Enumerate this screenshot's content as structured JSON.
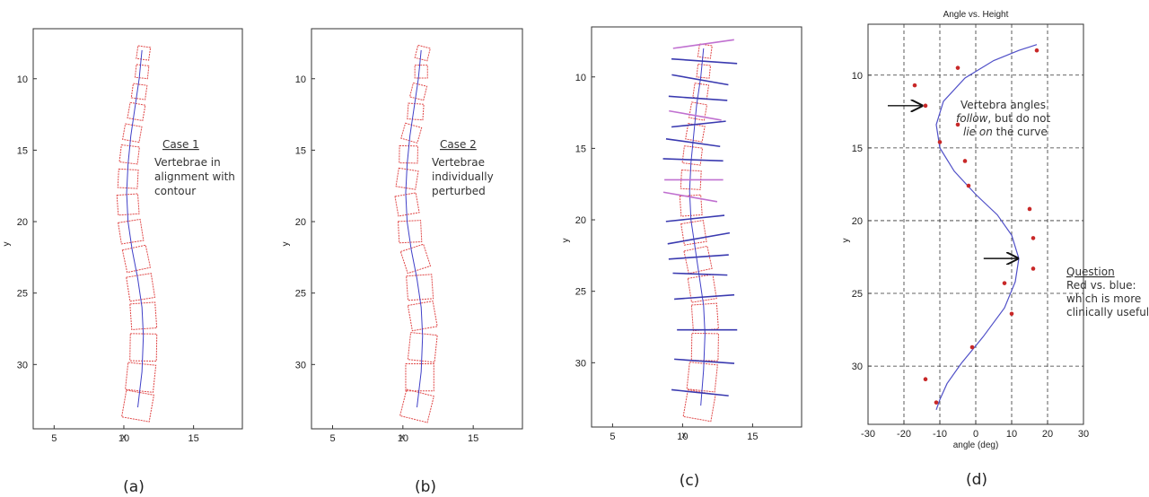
{
  "chart_data": [
    {
      "type": "scatter",
      "panel_label": "(a)",
      "xlabel": "x",
      "ylabel": "y",
      "xlim": [
        3.5,
        18.5
      ],
      "ylim": [
        34.5,
        6.5
      ],
      "xticks": [
        "5",
        "10",
        "15"
      ],
      "yticks": [
        "10",
        "15",
        "20",
        "25",
        "30"
      ],
      "annotation": {
        "title": "Case 1",
        "lines": [
          "Vertebrae in",
          "alignment with",
          "contour"
        ]
      },
      "contour": {
        "x": [
          11.3,
          11.1,
          10.8,
          10.5,
          10.3,
          10.2,
          10.3,
          10.6,
          11.0,
          11.3,
          11.4,
          11.3,
          11.0
        ],
        "y": [
          8.0,
          10.0,
          12.0,
          14.0,
          16.0,
          18.0,
          20.0,
          22.0,
          24.0,
          26.0,
          28.0,
          30.5,
          33.0
        ]
      },
      "vertebrae": [
        {
          "x": 11.4,
          "y": 8.2,
          "w": 0.9,
          "h": 0.9,
          "angle": 8
        },
        {
          "x": 11.3,
          "y": 9.5,
          "w": 0.9,
          "h": 0.9,
          "angle": 6
        },
        {
          "x": 11.1,
          "y": 10.9,
          "w": 1.0,
          "h": 1.0,
          "angle": 8
        },
        {
          "x": 10.9,
          "y": 12.3,
          "w": 1.1,
          "h": 1.1,
          "angle": 10
        },
        {
          "x": 10.6,
          "y": 13.8,
          "w": 1.2,
          "h": 1.1,
          "angle": 10
        },
        {
          "x": 10.4,
          "y": 15.3,
          "w": 1.3,
          "h": 1.2,
          "angle": 7
        },
        {
          "x": 10.3,
          "y": 17.0,
          "w": 1.4,
          "h": 1.3,
          "angle": 3
        },
        {
          "x": 10.3,
          "y": 18.8,
          "w": 1.5,
          "h": 1.4,
          "angle": -4
        },
        {
          "x": 10.5,
          "y": 20.7,
          "w": 1.6,
          "h": 1.5,
          "angle": -9
        },
        {
          "x": 10.9,
          "y": 22.6,
          "w": 1.7,
          "h": 1.6,
          "angle": -12
        },
        {
          "x": 11.2,
          "y": 24.6,
          "w": 1.8,
          "h": 1.7,
          "angle": -9
        },
        {
          "x": 11.4,
          "y": 26.6,
          "w": 1.8,
          "h": 1.8,
          "angle": -4
        },
        {
          "x": 11.4,
          "y": 28.8,
          "w": 1.9,
          "h": 1.9,
          "angle": 1
        },
        {
          "x": 11.2,
          "y": 30.9,
          "w": 2.0,
          "h": 1.9,
          "angle": 6
        },
        {
          "x": 11.0,
          "y": 32.9,
          "w": 2.0,
          "h": 1.9,
          "angle": 10
        }
      ]
    },
    {
      "type": "scatter",
      "panel_label": "(b)",
      "xlabel": "x",
      "ylabel": "y",
      "xlim": [
        3.5,
        18.5
      ],
      "ylim": [
        34.5,
        6.5
      ],
      "xticks": [
        "5",
        "10",
        "15"
      ],
      "yticks": [
        "10",
        "15",
        "20",
        "25",
        "30"
      ],
      "annotation": {
        "title": "Case 2",
        "lines": [
          "Vertebrae",
          "individually",
          "perturbed"
        ]
      },
      "contour": {
        "x": [
          11.3,
          11.1,
          10.8,
          10.5,
          10.3,
          10.2,
          10.3,
          10.6,
          11.0,
          11.3,
          11.4,
          11.3,
          11.0
        ],
        "y": [
          8.0,
          10.0,
          12.0,
          14.0,
          16.0,
          18.0,
          20.0,
          22.0,
          24.0,
          26.0,
          28.0,
          30.5,
          33.0
        ]
      },
      "vertebrae": [
        {
          "x": 11.4,
          "y": 8.2,
          "w": 0.9,
          "h": 0.9,
          "angle": 14
        },
        {
          "x": 11.3,
          "y": 9.5,
          "w": 0.9,
          "h": 0.9,
          "angle": 0
        },
        {
          "x": 11.1,
          "y": 10.9,
          "w": 1.0,
          "h": 1.0,
          "angle": 14
        },
        {
          "x": 10.9,
          "y": 12.3,
          "w": 1.1,
          "h": 1.1,
          "angle": 4
        },
        {
          "x": 10.6,
          "y": 13.8,
          "w": 1.2,
          "h": 1.1,
          "angle": 16
        },
        {
          "x": 10.4,
          "y": 15.3,
          "w": 1.3,
          "h": 1.2,
          "angle": 1
        },
        {
          "x": 10.3,
          "y": 17.0,
          "w": 1.4,
          "h": 1.3,
          "angle": 9
        },
        {
          "x": 10.3,
          "y": 18.8,
          "w": 1.5,
          "h": 1.4,
          "angle": -10
        },
        {
          "x": 10.5,
          "y": 20.7,
          "w": 1.6,
          "h": 1.5,
          "angle": -3
        },
        {
          "x": 10.9,
          "y": 22.6,
          "w": 1.7,
          "h": 1.6,
          "angle": -18
        },
        {
          "x": 11.2,
          "y": 24.6,
          "w": 1.8,
          "h": 1.7,
          "angle": -4
        },
        {
          "x": 11.4,
          "y": 26.6,
          "w": 1.8,
          "h": 1.8,
          "angle": -10
        },
        {
          "x": 11.4,
          "y": 28.8,
          "w": 1.9,
          "h": 1.9,
          "angle": 6
        },
        {
          "x": 11.2,
          "y": 30.9,
          "w": 2.0,
          "h": 1.9,
          "angle": 0
        },
        {
          "x": 11.0,
          "y": 32.9,
          "w": 2.0,
          "h": 1.9,
          "angle": 14
        }
      ]
    },
    {
      "type": "scatter",
      "panel_label": "(c)",
      "xlabel": "x",
      "ylabel": "y",
      "xlim": [
        3.5,
        18.5
      ],
      "ylim": [
        34.5,
        6.5
      ],
      "xticks": [
        "5",
        "10",
        "15"
      ],
      "yticks": [
        "10",
        "15",
        "20",
        "25",
        "30"
      ],
      "contour": {
        "x": [
          11.5,
          11.3,
          11.0,
          10.8,
          10.6,
          10.5,
          10.6,
          10.9,
          11.2,
          11.5,
          11.6,
          11.5,
          11.3
        ],
        "y": [
          8.0,
          10.0,
          12.0,
          14.0,
          16.0,
          18.0,
          20.0,
          22.0,
          24.0,
          26.0,
          28.0,
          30.5,
          33.0
        ]
      },
      "vertebrae": [
        {
          "x": 11.6,
          "y": 8.2,
          "w": 0.9,
          "h": 0.9,
          "angle": 8
        },
        {
          "x": 11.5,
          "y": 9.6,
          "w": 0.9,
          "h": 0.9,
          "angle": 6
        },
        {
          "x": 11.3,
          "y": 11.0,
          "w": 1.0,
          "h": 1.0,
          "angle": 8
        },
        {
          "x": 11.1,
          "y": 12.4,
          "w": 1.1,
          "h": 1.1,
          "angle": 10
        },
        {
          "x": 10.9,
          "y": 13.9,
          "w": 1.2,
          "h": 1.1,
          "angle": 10
        },
        {
          "x": 10.7,
          "y": 15.5,
          "w": 1.3,
          "h": 1.2,
          "angle": 7
        },
        {
          "x": 10.6,
          "y": 17.2,
          "w": 1.4,
          "h": 1.3,
          "angle": 3
        },
        {
          "x": 10.6,
          "y": 19.0,
          "w": 1.5,
          "h": 1.4,
          "angle": -4
        },
        {
          "x": 10.8,
          "y": 20.9,
          "w": 1.6,
          "h": 1.5,
          "angle": -9
        },
        {
          "x": 11.1,
          "y": 22.8,
          "w": 1.7,
          "h": 1.6,
          "angle": -12
        },
        {
          "x": 11.4,
          "y": 24.8,
          "w": 1.8,
          "h": 1.7,
          "angle": -9
        },
        {
          "x": 11.6,
          "y": 26.8,
          "w": 1.8,
          "h": 1.8,
          "angle": -4
        },
        {
          "x": 11.6,
          "y": 28.9,
          "w": 1.9,
          "h": 1.9,
          "angle": 1
        },
        {
          "x": 11.4,
          "y": 31.0,
          "w": 2.0,
          "h": 1.9,
          "angle": 6
        },
        {
          "x": 11.2,
          "y": 33.0,
          "w": 2.0,
          "h": 1.9,
          "angle": 10
        }
      ],
      "angle_lines": [
        {
          "y": 7.7,
          "x1": 9.3,
          "x2": 13.7,
          "angle": -8,
          "color": "#c070d0"
        },
        {
          "y": 8.9,
          "x1": 9.2,
          "x2": 13.9,
          "angle": 4,
          "color": "#3a3ab0"
        },
        {
          "y": 10.2,
          "x1": 9.2,
          "x2": 13.3,
          "angle": 10,
          "color": "#3a3ab0"
        },
        {
          "y": 11.5,
          "x1": 9.0,
          "x2": 13.2,
          "angle": 4,
          "color": "#3a3ab0"
        },
        {
          "y": 12.7,
          "x1": 9.0,
          "x2": 12.8,
          "angle": 10,
          "color": "#c070d0"
        },
        {
          "y": 13.3,
          "x1": 9.2,
          "x2": 13.1,
          "angle": -6,
          "color": "#3a3ab0"
        },
        {
          "y": 14.6,
          "x1": 8.8,
          "x2": 12.7,
          "angle": 8,
          "color": "#3a3ab0"
        },
        {
          "y": 15.8,
          "x1": 8.6,
          "x2": 12.9,
          "angle": 2,
          "color": "#3a3ab0"
        },
        {
          "y": 17.2,
          "x1": 8.7,
          "x2": 12.9,
          "angle": 0,
          "color": "#c070d0"
        },
        {
          "y": 18.4,
          "x1": 8.6,
          "x2": 12.5,
          "angle": 10,
          "color": "#c070d0"
        },
        {
          "y": 19.9,
          "x1": 8.8,
          "x2": 13.0,
          "angle": -6,
          "color": "#3a3ab0"
        },
        {
          "y": 21.3,
          "x1": 8.9,
          "x2": 13.4,
          "angle": -10,
          "color": "#3a3ab0"
        },
        {
          "y": 22.6,
          "x1": 9.0,
          "x2": 13.3,
          "angle": -4,
          "color": "#3a3ab0"
        },
        {
          "y": 23.8,
          "x1": 9.3,
          "x2": 13.2,
          "angle": 2,
          "color": "#3a3ab0"
        },
        {
          "y": 25.4,
          "x1": 9.4,
          "x2": 13.7,
          "angle": -4,
          "color": "#3a3ab0"
        },
        {
          "y": 27.7,
          "x1": 9.6,
          "x2": 13.9,
          "angle": 0,
          "color": "#3a3ab0"
        },
        {
          "y": 29.9,
          "x1": 9.4,
          "x2": 13.7,
          "angle": 4,
          "color": "#3a3ab0"
        },
        {
          "y": 32.1,
          "x1": 9.2,
          "x2": 13.3,
          "angle": 6,
          "color": "#3a3ab0"
        }
      ]
    },
    {
      "type": "scatter",
      "panel_label": "(d)",
      "title": "Angle vs. Height",
      "xlabel": "angle (deg)",
      "ylabel": "y",
      "xlim": [
        -30,
        30
      ],
      "ylim": [
        34,
        6.5
      ],
      "xticks": [
        "-30",
        "-20",
        "-10",
        "0",
        "10",
        "20",
        "30"
      ],
      "yticks": [
        "10",
        "15",
        "20",
        "25",
        "30"
      ],
      "grid": true,
      "curve": {
        "x": [
          17,
          12,
          5,
          -3,
          -9,
          -11,
          -10,
          -6,
          0,
          6,
          10,
          12,
          11,
          8,
          2,
          -4,
          -8,
          -10,
          -11
        ],
        "y": [
          7.9,
          8.3,
          9.0,
          10.2,
          11.8,
          13.4,
          15.0,
          16.6,
          18.2,
          19.6,
          21.0,
          22.6,
          24.2,
          26.0,
          28.0,
          29.8,
          31.2,
          32.3,
          33.0
        ]
      },
      "points": [
        {
          "angle": 17,
          "y": 8.3
        },
        {
          "angle": -5,
          "y": 9.5
        },
        {
          "angle": -17,
          "y": 10.7
        },
        {
          "angle": -14,
          "y": 12.1
        },
        {
          "angle": -5,
          "y": 13.4
        },
        {
          "angle": -10,
          "y": 14.6
        },
        {
          "angle": -3,
          "y": 15.9
        },
        {
          "angle": -2,
          "y": 17.6
        },
        {
          "angle": 15,
          "y": 19.2
        },
        {
          "angle": 16,
          "y": 21.2
        },
        {
          "angle": 16,
          "y": 23.3
        },
        {
          "angle": 8,
          "y": 24.3
        },
        {
          "angle": 10,
          "y": 26.4
        },
        {
          "angle": -1,
          "y": 28.7
        },
        {
          "angle": -14,
          "y": 30.9
        },
        {
          "angle": -11,
          "y": 32.5
        }
      ],
      "annotation_top": {
        "lines": [
          "Vertebra angles",
          "follow, but do not",
          "lie on the curve"
        ]
      },
      "annotation_right": {
        "title": "Question",
        "lines": [
          "Red vs. blue:",
          "which is more",
          "clinically useful?"
        ]
      },
      "arrows": [
        {
          "angle": -14.5,
          "y": 12.1
        },
        {
          "angle": 12.2,
          "y": 22.6
        }
      ]
    }
  ]
}
